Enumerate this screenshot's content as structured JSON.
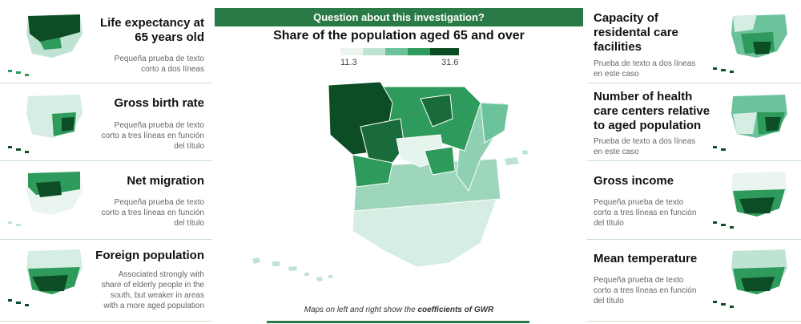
{
  "header": {
    "question": "Question about this investigation?"
  },
  "main": {
    "title": "Share of the population aged 65 and over",
    "legend": {
      "min": "11.3",
      "max": "31.6",
      "colors": [
        "#eaf5ef",
        "#bfe3d2",
        "#6cc39b",
        "#2e9a5b",
        "#0d4d26"
      ]
    },
    "footer_prefix": "Maps on left and right show the ",
    "footer_bold": "coefficients of GWR"
  },
  "left": [
    {
      "title": "Life expectancy at\n65 years old",
      "desc": "Pequeña prueba de texto\ncorto a dos líneas"
    },
    {
      "title": "Gross birth rate",
      "desc": "Pequeña prueba de texto\ncorto a tres líneas en función\ndel título"
    },
    {
      "title": "Net migration",
      "desc": "Pequeña prueba de texto\ncorto a tres líneas en función\ndel título"
    },
    {
      "title": "Foreign population",
      "desc": "Associated strongly with\nshare of elderly people in the\nsouth, but weaker in areas\nwith a more aged population"
    }
  ],
  "right": [
    {
      "title": "Capacity of\nresidental care\nfacilities",
      "desc": "Prueba de texto a dos líneas\nen este caso"
    },
    {
      "title": "Number of health\ncare centers relative\nto aged population",
      "desc": "Prueba de texto a dos líneas\nen este caso"
    },
    {
      "title": "Gross income",
      "desc": "Pequeña prueba de texto\ncorto a tres líneas en función\ndel título"
    },
    {
      "title": "Mean temperature",
      "desc": "Pequeña prueba de texto\ncorto a tres líneas en función\ndel título"
    }
  ],
  "colors": {
    "accent": "#2a7a46",
    "dark": "#0d4d26",
    "mid": "#2e9a5b",
    "light": "#bfe3d2",
    "pale": "#eaf5ef"
  }
}
